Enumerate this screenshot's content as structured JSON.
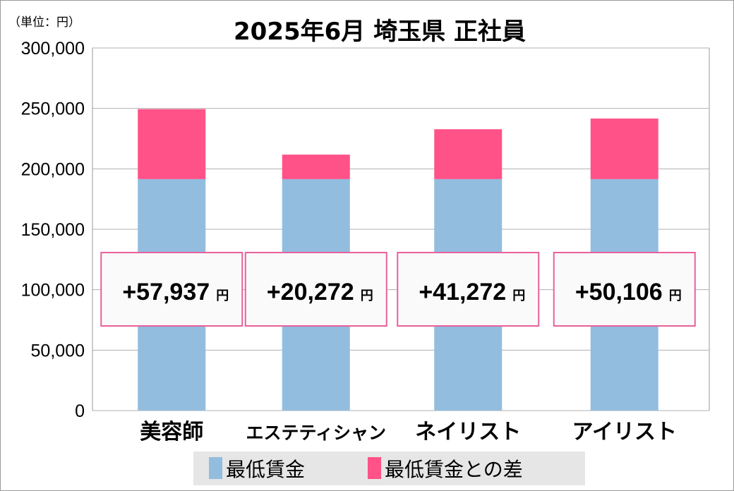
{
  "chart_data": {
    "type": "bar",
    "stacked": true,
    "title": "2025年6月 埼玉県 正社員",
    "unit_label": "（単位：円）",
    "categories": [
      "美容師",
      "エステティシャン",
      "ネイリスト",
      "アイリスト"
    ],
    "series": [
      {
        "name": "最低賃金",
        "color": "#92bddf",
        "values": [
          191500,
          191500,
          191500,
          191500
        ]
      },
      {
        "name": "最低賃金との差",
        "color": "#ff5289",
        "values": [
          57937,
          20272,
          41272,
          50106
        ]
      }
    ],
    "data_labels": [
      "+57,937",
      "+20,272",
      "+41,272",
      "+50,106"
    ],
    "data_label_suffix": "円",
    "ylim": [
      0,
      300000
    ],
    "yticks": [
      "0",
      "50,000",
      "100,000",
      "150,000",
      "200,000",
      "250,000",
      "300,000"
    ],
    "grid": true,
    "legend": "bottom"
  }
}
